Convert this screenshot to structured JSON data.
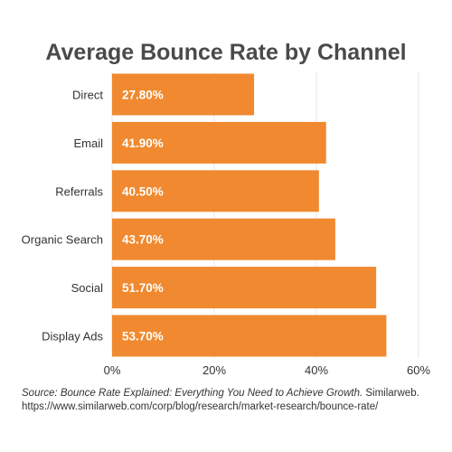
{
  "chart_data": {
    "type": "bar",
    "orientation": "horizontal",
    "title": "Average Bounce Rate by Channel",
    "categories": [
      "Direct",
      "Email",
      "Referrals",
      "Organic Search",
      "Social",
      "Display Ads"
    ],
    "values": [
      27.8,
      41.9,
      40.5,
      43.7,
      51.7,
      53.7
    ],
    "data_labels": [
      "27.80%",
      "41.90%",
      "40.50%",
      "43.70%",
      "51.70%",
      "53.70%"
    ],
    "x_ticks": [
      "0%",
      "20%",
      "40%",
      "60%"
    ],
    "x_tick_values": [
      0,
      20,
      40,
      60
    ],
    "xlim": [
      0,
      60
    ],
    "xlabel": "",
    "ylabel": "",
    "grid": "vertical",
    "legend": "none",
    "bar_color": "#f0892f",
    "label_color": "#ffffff",
    "grid_color": "#e6e6e6"
  },
  "source": {
    "italic_part": "Source: Bounce Rate Explained: Everything You Need to Achieve Growth.",
    "plain_part": " Similarweb. https://www.similarweb.com/corp/blog/research/market-research/bounce-rate/"
  }
}
